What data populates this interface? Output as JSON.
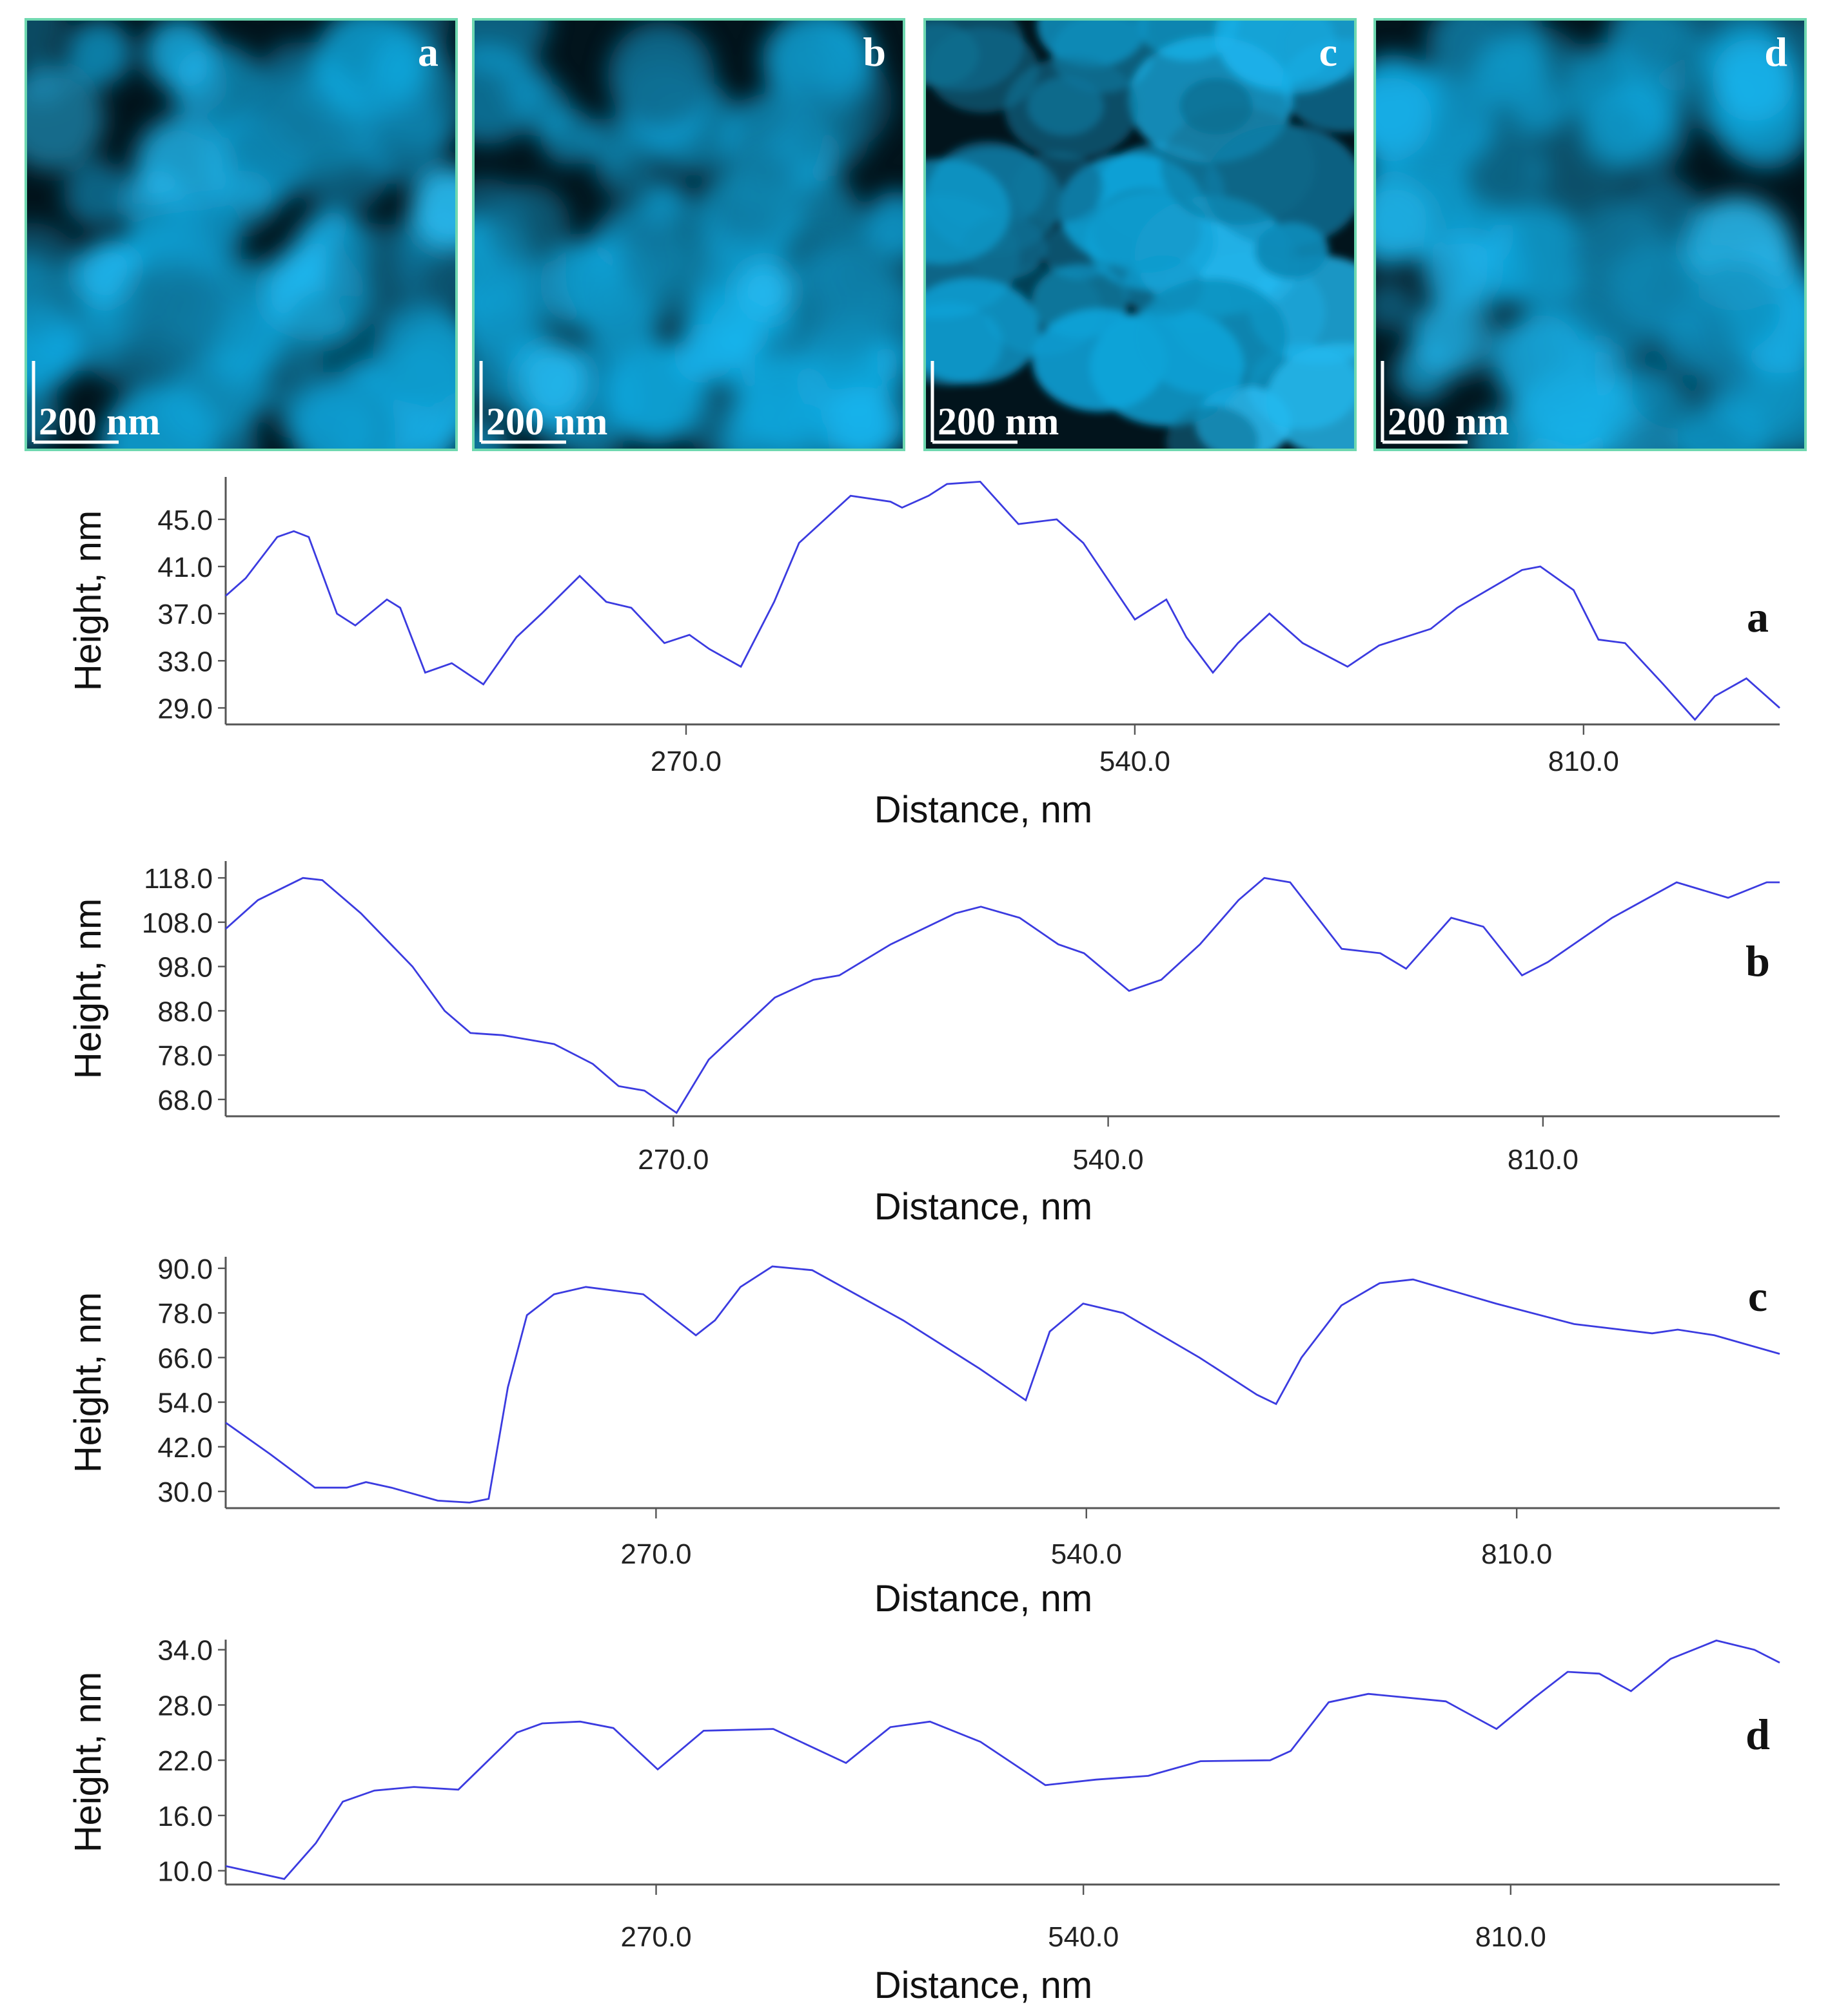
{
  "images": [
    {
      "label": "a",
      "scale_bar": "200 nm"
    },
    {
      "label": "b",
      "scale_bar": "200 nm"
    },
    {
      "label": "c",
      "scale_bar": "200 nm"
    },
    {
      "label": "d",
      "scale_bar": "200 nm"
    }
  ],
  "chart_data": [
    {
      "type": "line",
      "label": "a",
      "x_label": "Distance, nm",
      "y_label": "Height, nm",
      "color": "#3b3be0",
      "xlim": [
        -7,
        928
      ],
      "ylim": [
        27.6,
        48.6
      ],
      "xticks": [
        {
          "value": 270,
          "label": "270.0"
        },
        {
          "value": 540,
          "label": "540.0"
        },
        {
          "value": 810,
          "label": "810.0"
        }
      ],
      "yticks": [
        {
          "value": 29,
          "label": "29.0"
        },
        {
          "value": 33,
          "label": "33.0"
        },
        {
          "value": 37,
          "label": "37.0"
        },
        {
          "value": 41,
          "label": "41.0"
        },
        {
          "value": 45,
          "label": "45.0"
        }
      ],
      "x": [
        -7,
        5,
        24,
        34,
        43,
        60,
        71,
        90,
        98,
        113,
        129,
        148,
        168,
        183,
        206,
        222,
        237,
        257,
        272,
        284,
        303,
        323,
        338,
        369,
        393,
        400,
        416,
        427,
        447,
        470,
        493,
        509,
        540,
        559,
        571,
        587,
        602,
        621,
        641,
        668,
        687,
        718,
        734,
        773,
        784,
        804,
        819,
        835,
        858,
        877,
        889,
        908,
        928
      ],
      "series": [
        {
          "values": [
            38.5,
            40,
            43.5,
            44,
            43.5,
            37,
            36,
            38.2,
            37.5,
            32,
            32.8,
            31,
            35,
            37,
            40.2,
            38,
            37.5,
            34.5,
            35.2,
            34,
            32.5,
            38,
            43,
            47,
            46.5,
            46,
            47,
            48,
            48.2,
            44.6,
            45,
            43,
            36.5,
            38.2,
            35,
            32,
            34.5,
            37,
            34.5,
            32.5,
            34.3,
            35.7,
            37.5,
            40.7,
            41,
            39,
            34.8,
            34.5,
            31,
            28,
            30,
            31.5,
            29
          ]
        }
      ]
    },
    {
      "type": "line",
      "label": "b",
      "x_label": "Distance, nm",
      "y_label": "Height, nm",
      "color": "#3b3be0",
      "xlim": [
        -8,
        957
      ],
      "ylim": [
        64.2,
        121.8
      ],
      "xticks": [
        {
          "value": 270,
          "label": "270.0"
        },
        {
          "value": 540,
          "label": "540.0"
        },
        {
          "value": 810,
          "label": "810.0"
        }
      ],
      "yticks": [
        {
          "value": 68,
          "label": "68.0"
        },
        {
          "value": 78,
          "label": "78.0"
        },
        {
          "value": 88,
          "label": "88.0"
        },
        {
          "value": 98,
          "label": "98.0"
        },
        {
          "value": 108,
          "label": "108.0"
        },
        {
          "value": 118,
          "label": "118.0"
        }
      ],
      "x": [
        -8,
        12,
        40,
        52,
        76,
        108,
        128,
        144,
        164,
        172,
        196,
        220,
        236,
        252,
        272,
        292,
        333,
        357,
        373,
        405,
        445,
        461,
        485,
        509,
        525,
        553,
        573,
        597,
        621,
        637,
        653,
        685,
        709,
        725,
        753,
        773,
        797,
        813,
        853,
        893,
        925,
        949,
        957
      ],
      "series": [
        {
          "values": [
            106.5,
            113,
            118,
            117.5,
            110,
            98,
            88,
            83,
            82.5,
            82,
            80.5,
            76,
            71,
            70,
            65,
            77,
            91,
            95,
            96,
            103,
            110,
            111.5,
            109,
            103,
            101,
            92.5,
            95,
            103,
            113,
            118,
            117,
            102,
            101,
            97.5,
            109,
            107,
            96,
            99,
            109,
            117,
            113.5,
            117,
            117
          ]
        }
      ]
    },
    {
      "type": "line",
      "label": "c",
      "x_label": "Distance, nm",
      "y_label": "Height, nm",
      "color": "#3b3be0",
      "xlim": [
        0,
        975
      ],
      "ylim": [
        25.5,
        93.1
      ],
      "xticks": [
        {
          "value": 270,
          "label": "270.0"
        },
        {
          "value": 540,
          "label": "540.0"
        },
        {
          "value": 810,
          "label": "810.0"
        }
      ],
      "yticks": [
        {
          "value": 30,
          "label": "30.0"
        },
        {
          "value": 42,
          "label": "42.0"
        },
        {
          "value": 54,
          "label": "54.0"
        },
        {
          "value": 66,
          "label": "66.0"
        },
        {
          "value": 78,
          "label": "78.0"
        },
        {
          "value": 90,
          "label": "90.0"
        }
      ],
      "x": [
        0,
        28,
        56,
        76,
        88,
        104,
        133,
        153,
        165,
        177,
        189,
        206,
        226,
        262,
        295,
        307,
        323,
        343,
        368,
        425,
        473,
        502,
        517,
        538,
        563,
        611,
        647,
        659,
        675,
        700,
        724,
        745,
        765,
        797,
        846,
        895,
        911,
        934,
        975
      ],
      "series": [
        {
          "values": [
            48.5,
            40,
            31,
            31,
            32.5,
            31,
            27.5,
            27,
            28,
            58,
            77.4,
            83,
            85,
            83,
            72,
            76,
            85,
            90.5,
            89.5,
            76,
            63,
            54.5,
            73,
            80.5,
            78,
            66,
            56,
            53.5,
            66,
            80,
            86,
            87,
            84.5,
            80.5,
            75,
            72.5,
            73.5,
            72,
            67
          ]
        }
      ]
    },
    {
      "type": "line",
      "label": "d",
      "x_label": "Distance, nm",
      "y_label": "Height, nm",
      "color": "#3b3be0",
      "xlim": [
        -2,
        980
      ],
      "ylim": [
        8.5,
        35.1
      ],
      "xticks": [
        {
          "value": 270,
          "label": "270.0"
        },
        {
          "value": 540,
          "label": "540.0"
        },
        {
          "value": 810,
          "label": "810.0"
        }
      ],
      "yticks": [
        {
          "value": 10,
          "label": "10.0"
        },
        {
          "value": 16,
          "label": "16.0"
        },
        {
          "value": 22,
          "label": "22.0"
        },
        {
          "value": 28,
          "label": "28.0"
        },
        {
          "value": 34,
          "label": "34.0"
        }
      ],
      "x": [
        -2,
        19,
        35,
        55,
        72,
        92,
        117,
        145,
        182,
        198,
        222,
        243,
        271,
        300,
        344,
        390,
        418,
        443,
        475,
        516,
        548,
        581,
        614,
        658,
        671,
        695,
        720,
        769,
        801,
        825,
        846,
        866,
        886,
        911,
        940,
        964,
        980
      ],
      "series": [
        {
          "values": [
            10.5,
            9.7,
            9.1,
            13,
            17.5,
            18.7,
            19.1,
            18.8,
            25,
            26,
            26.2,
            25.5,
            21,
            25.2,
            25.4,
            21.7,
            25.6,
            26.2,
            24,
            19.3,
            19.9,
            20.3,
            21.9,
            22,
            23,
            28.3,
            29.2,
            28.4,
            25.4,
            28.8,
            31.6,
            31.4,
            29.5,
            33,
            35,
            34,
            32.6
          ]
        }
      ]
    }
  ]
}
